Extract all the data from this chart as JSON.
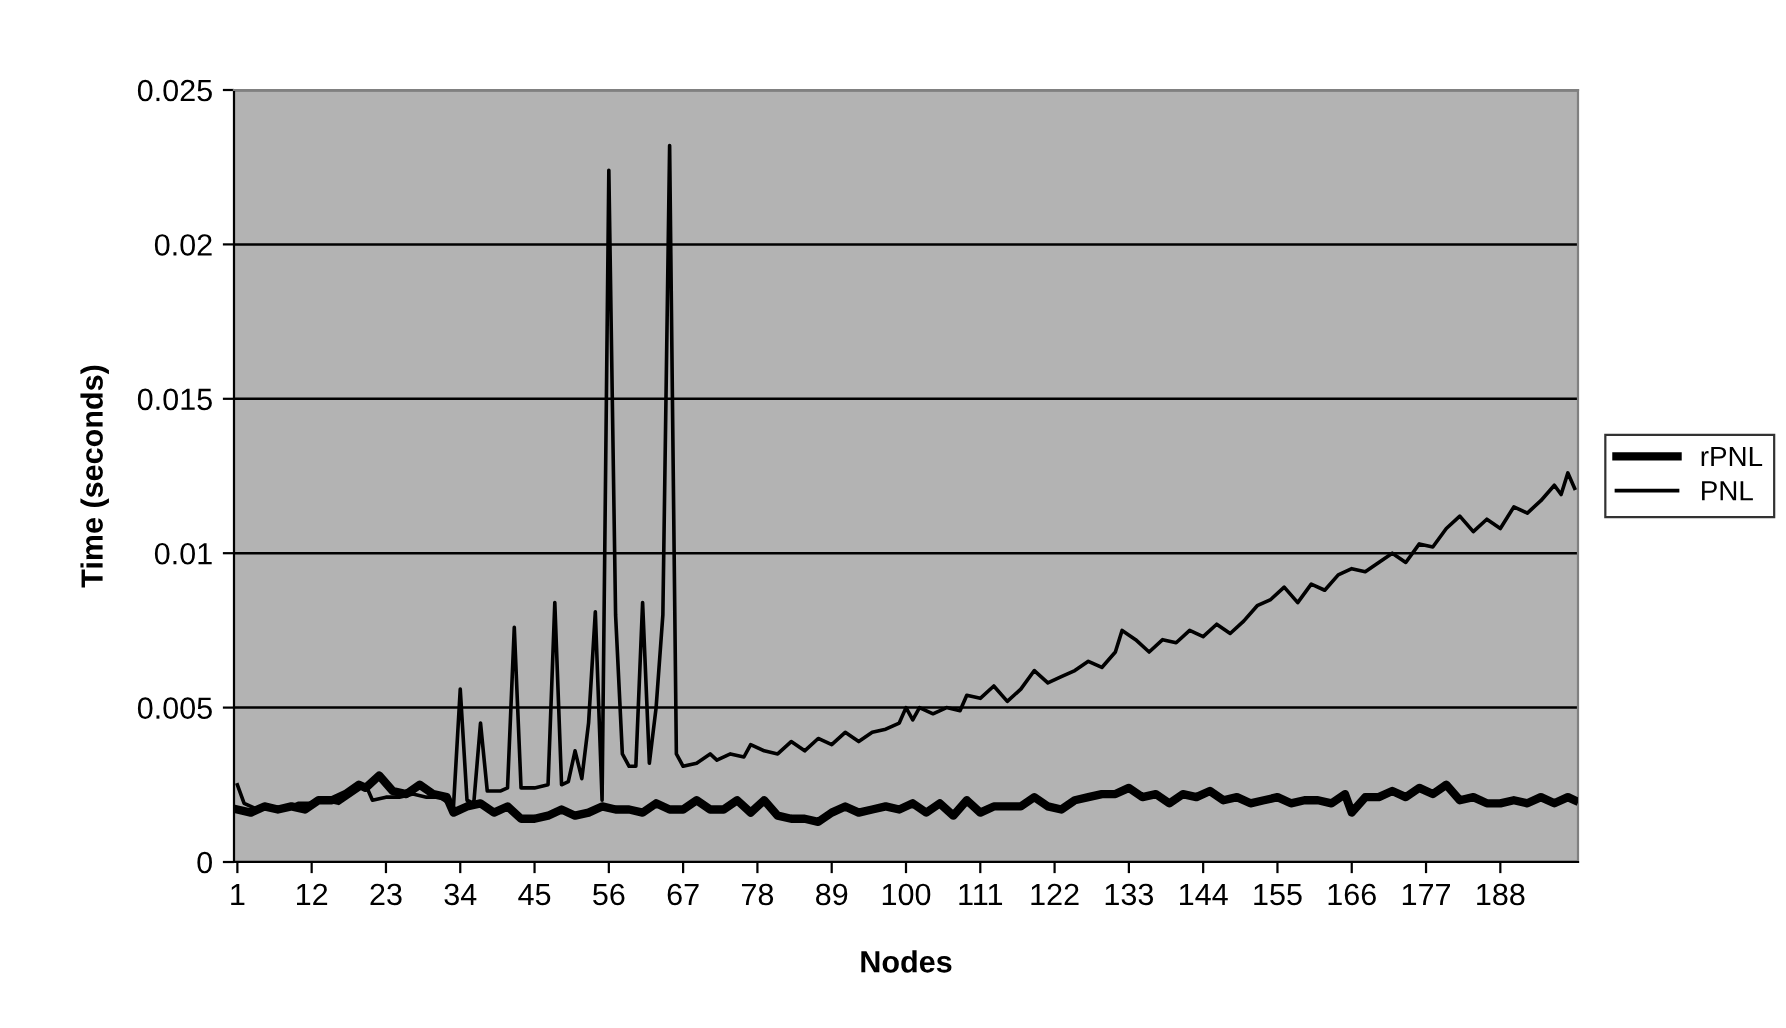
{
  "chart_data": {
    "type": "line",
    "xlabel": "Nodes",
    "ylabel": "Time (seconds)",
    "xlim": [
      0.5,
      199.5
    ],
    "xticks": [
      1,
      12,
      23,
      34,
      45,
      56,
      67,
      78,
      89,
      100,
      111,
      122,
      133,
      144,
      155,
      166,
      177,
      188
    ],
    "ylim": [
      0,
      0.025
    ],
    "yticks": [
      0,
      0.005,
      0.01,
      0.015,
      0.02,
      0.025
    ],
    "grid": "y",
    "legend": "right",
    "marker": "none",
    "line_style": "solid",
    "series": [
      {
        "name": "rPNL",
        "color": "#000000",
        "x": [
          1,
          3,
          5,
          7,
          9,
          11,
          13,
          15,
          17,
          19,
          20,
          22,
          24,
          26,
          28,
          30,
          32,
          33,
          35,
          37,
          39,
          41,
          43,
          45,
          47,
          49,
          51,
          53,
          55,
          57,
          59,
          61,
          63,
          65,
          67,
          69,
          71,
          73,
          75,
          77,
          79,
          81,
          83,
          85,
          87,
          89,
          91,
          93,
          95,
          97,
          99,
          101,
          103,
          105,
          107,
          109,
          111,
          113,
          115,
          117,
          119,
          121,
          123,
          125,
          127,
          129,
          131,
          133,
          135,
          137,
          139,
          141,
          143,
          145,
          147,
          149,
          151,
          153,
          155,
          157,
          159,
          161,
          163,
          165,
          166,
          168,
          170,
          172,
          174,
          176,
          178,
          180,
          182,
          184,
          186,
          188,
          190,
          192,
          194,
          196,
          198,
          199
        ],
        "values": [
          0.0017,
          0.0016,
          0.0018,
          0.0017,
          0.0018,
          0.0017,
          0.002,
          0.002,
          0.0022,
          0.0025,
          0.0024,
          0.0028,
          0.0023,
          0.0022,
          0.0025,
          0.0022,
          0.0021,
          0.0016,
          0.0018,
          0.0019,
          0.0016,
          0.0018,
          0.0014,
          0.0014,
          0.0015,
          0.0017,
          0.0015,
          0.0016,
          0.0018,
          0.0017,
          0.0017,
          0.0016,
          0.0019,
          0.0017,
          0.0017,
          0.002,
          0.0017,
          0.0017,
          0.002,
          0.0016,
          0.002,
          0.0015,
          0.0014,
          0.0014,
          0.0013,
          0.0016,
          0.0018,
          0.0016,
          0.0017,
          0.0018,
          0.0017,
          0.0019,
          0.0016,
          0.0019,
          0.0015,
          0.002,
          0.0016,
          0.0018,
          0.0018,
          0.0018,
          0.0021,
          0.0018,
          0.0017,
          0.002,
          0.0021,
          0.0022,
          0.0022,
          0.0024,
          0.0021,
          0.0022,
          0.0019,
          0.0022,
          0.0021,
          0.0023,
          0.002,
          0.0021,
          0.0019,
          0.002,
          0.0021,
          0.0019,
          0.002,
          0.002,
          0.0019,
          0.0022,
          0.0016,
          0.0021,
          0.0021,
          0.0023,
          0.0021,
          0.0024,
          0.0022,
          0.0025,
          0.002,
          0.0021,
          0.0019,
          0.0019,
          0.002,
          0.0019,
          0.0021,
          0.0019,
          0.0021,
          0.002
        ]
      },
      {
        "name": "PNL",
        "color": "#000000",
        "x": [
          1,
          2,
          4,
          6,
          8,
          10,
          12,
          14,
          16,
          18,
          20,
          21,
          23,
          25,
          27,
          29,
          31,
          33,
          34,
          35,
          36,
          37,
          38,
          40,
          41,
          42,
          43,
          45,
          47,
          48,
          49,
          50,
          51,
          52,
          53,
          54,
          55,
          56,
          57,
          58,
          59,
          60,
          61,
          62,
          63,
          64,
          65,
          66,
          67,
          69,
          71,
          72,
          74,
          76,
          77,
          79,
          81,
          83,
          85,
          87,
          89,
          91,
          93,
          95,
          97,
          99,
          100,
          101,
          102,
          104,
          106,
          108,
          109,
          111,
          113,
          115,
          117,
          119,
          121,
          123,
          125,
          127,
          129,
          131,
          132,
          134,
          136,
          138,
          140,
          142,
          144,
          146,
          148,
          150,
          152,
          154,
          156,
          158,
          160,
          162,
          164,
          166,
          168,
          170,
          172,
          174,
          176,
          178,
          180,
          182,
          184,
          186,
          188,
          190,
          192,
          194,
          196,
          197,
          198,
          199
        ],
        "values": [
          0.0025,
          0.0019,
          0.0017,
          0.0018,
          0.0017,
          0.0019,
          0.0019,
          0.002,
          0.0019,
          0.0022,
          0.0025,
          0.002,
          0.0021,
          0.0021,
          0.0022,
          0.0021,
          0.0021,
          0.0018,
          0.0056,
          0.002,
          0.0019,
          0.0045,
          0.0023,
          0.0023,
          0.0024,
          0.0076,
          0.0024,
          0.0024,
          0.0025,
          0.0084,
          0.0025,
          0.0026,
          0.0036,
          0.0027,
          0.0045,
          0.0081,
          0.002,
          0.0224,
          0.008,
          0.0035,
          0.0031,
          0.0031,
          0.0084,
          0.0032,
          0.005,
          0.008,
          0.0232,
          0.0035,
          0.0031,
          0.0032,
          0.0035,
          0.0033,
          0.0035,
          0.0034,
          0.0038,
          0.0036,
          0.0035,
          0.0039,
          0.0036,
          0.004,
          0.0038,
          0.0042,
          0.0039,
          0.0042,
          0.0043,
          0.0045,
          0.005,
          0.0046,
          0.005,
          0.0048,
          0.005,
          0.0049,
          0.0054,
          0.0053,
          0.0057,
          0.0052,
          0.0056,
          0.0062,
          0.0058,
          0.006,
          0.0062,
          0.0065,
          0.0063,
          0.0068,
          0.0075,
          0.0072,
          0.0068,
          0.0072,
          0.0071,
          0.0075,
          0.0073,
          0.0077,
          0.0074,
          0.0078,
          0.0083,
          0.0085,
          0.0089,
          0.0084,
          0.009,
          0.0088,
          0.0093,
          0.0095,
          0.0094,
          0.0097,
          0.01,
          0.0097,
          0.0103,
          0.0102,
          0.0108,
          0.0112,
          0.0107,
          0.0111,
          0.0108,
          0.0115,
          0.0113,
          0.0117,
          0.0122,
          0.0119,
          0.0126,
          0.0121
        ]
      }
    ]
  }
}
